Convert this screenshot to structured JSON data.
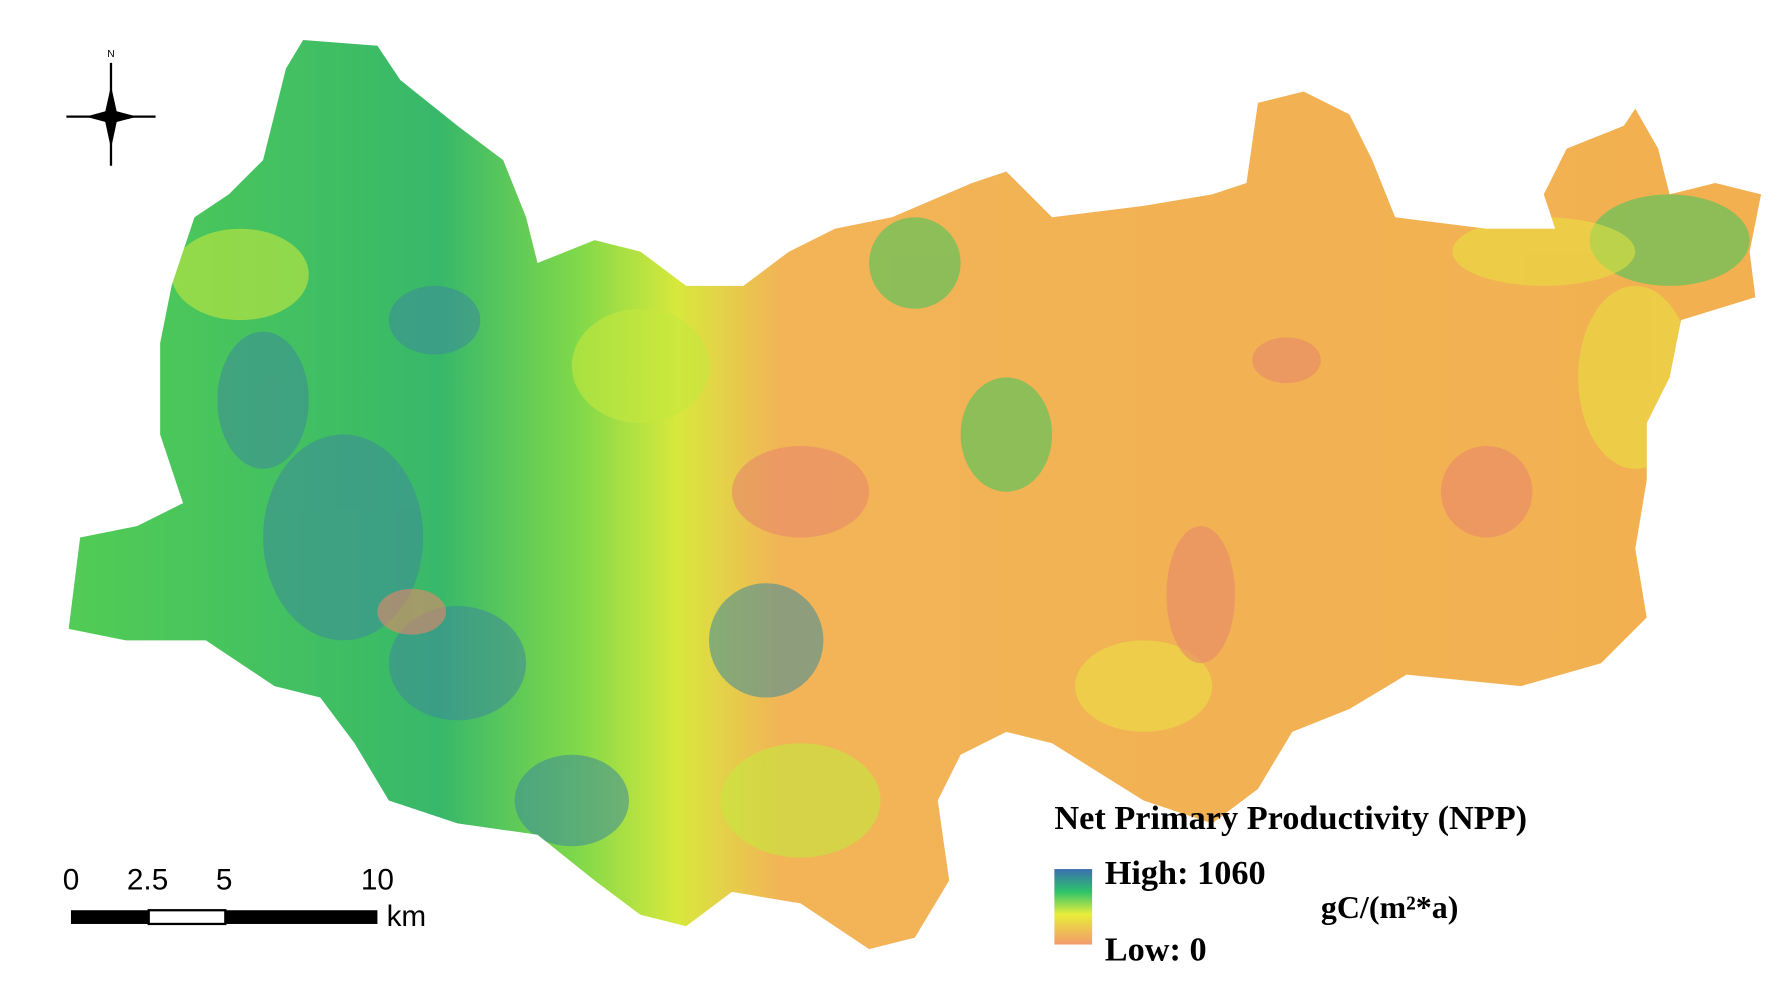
{
  "north_arrow": {
    "label": "N"
  },
  "scale_bar": {
    "ticks": [
      0,
      2.5,
      5,
      10
    ],
    "unit": "km"
  },
  "legend": {
    "title": "Net Primary Productivity (NPP)",
    "high": "High: 1060",
    "low": "Low: 0",
    "unit": "gC/(m²*a)"
  }
}
